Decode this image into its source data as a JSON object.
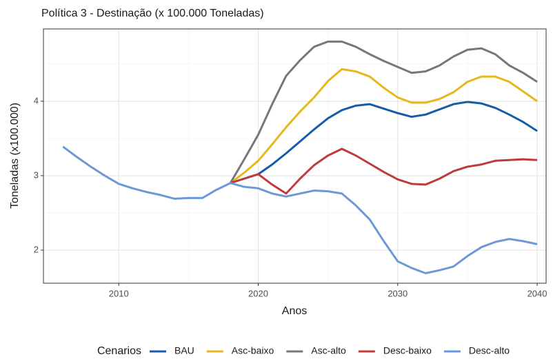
{
  "chart_data": {
    "type": "line",
    "title": "Política 3 - Destinação (x 100.000 Toneladas)",
    "x_label": "Anos",
    "y_label": "Toneladas (x100.000)",
    "legend_title": "Cenarios",
    "x": [
      2006,
      2007,
      2008,
      2009,
      2010,
      2011,
      2012,
      2013,
      2014,
      2015,
      2016,
      2017,
      2018,
      2019,
      2020,
      2021,
      2022,
      2023,
      2024,
      2025,
      2026,
      2027,
      2028,
      2029,
      2030,
      2031,
      2032,
      2033,
      2034,
      2035,
      2036,
      2037,
      2038,
      2039,
      2040
    ],
    "series": [
      {
        "name": "BAU",
        "color": "#145ca8",
        "values": [
          null,
          null,
          null,
          null,
          null,
          null,
          null,
          null,
          null,
          null,
          null,
          null,
          2.9,
          2.96,
          3.02,
          3.15,
          3.3,
          3.46,
          3.62,
          3.77,
          3.88,
          3.94,
          3.96,
          3.9,
          3.84,
          3.79,
          3.82,
          3.89,
          3.96,
          3.99,
          3.97,
          3.91,
          3.82,
          3.72,
          3.6
        ]
      },
      {
        "name": "Asc-baixo",
        "color": "#e5b81c",
        "values": [
          null,
          null,
          null,
          null,
          null,
          null,
          null,
          null,
          null,
          null,
          null,
          null,
          2.9,
          3.04,
          3.2,
          3.42,
          3.65,
          3.86,
          4.05,
          4.27,
          4.43,
          4.4,
          4.33,
          4.18,
          4.05,
          3.98,
          3.98,
          4.03,
          4.12,
          4.26,
          4.33,
          4.33,
          4.26,
          4.13,
          4.0
        ]
      },
      {
        "name": "Asc-alto",
        "color": "#777777",
        "values": [
          null,
          null,
          null,
          null,
          null,
          null,
          null,
          null,
          null,
          null,
          null,
          null,
          2.9,
          3.22,
          3.55,
          3.96,
          4.34,
          4.55,
          4.73,
          4.8,
          4.8,
          4.73,
          4.63,
          4.54,
          4.46,
          4.38,
          4.4,
          4.48,
          4.6,
          4.69,
          4.71,
          4.63,
          4.48,
          4.38,
          4.26
        ]
      },
      {
        "name": "Desc-baixo",
        "color": "#c0393b",
        "values": [
          null,
          null,
          null,
          null,
          null,
          null,
          null,
          null,
          null,
          null,
          null,
          null,
          2.9,
          2.96,
          3.02,
          2.88,
          2.76,
          2.96,
          3.14,
          3.27,
          3.36,
          3.27,
          3.16,
          3.05,
          2.95,
          2.89,
          2.88,
          2.96,
          3.06,
          3.12,
          3.15,
          3.2,
          3.21,
          3.22,
          3.21
        ]
      },
      {
        "name": "Desc-alto",
        "color": "#6c99d6",
        "values": [
          3.39,
          3.25,
          3.12,
          3.0,
          2.89,
          2.83,
          2.78,
          2.74,
          2.69,
          2.7,
          2.7,
          2.81,
          2.9,
          2.85,
          2.83,
          2.76,
          2.72,
          2.76,
          2.8,
          2.79,
          2.76,
          2.6,
          2.41,
          2.12,
          1.85,
          1.76,
          1.69,
          1.73,
          1.78,
          1.92,
          2.04,
          2.11,
          2.15,
          2.12,
          2.08
        ]
      }
    ],
    "xlim": [
      2004.6,
      2040.64
    ],
    "xticks": [
      2010,
      2020,
      2030,
      2040
    ],
    "ylim": [
      1.556,
      4.97
    ],
    "yticks": [
      2,
      3,
      4
    ],
    "grid": true,
    "legend_position": "bottom"
  }
}
